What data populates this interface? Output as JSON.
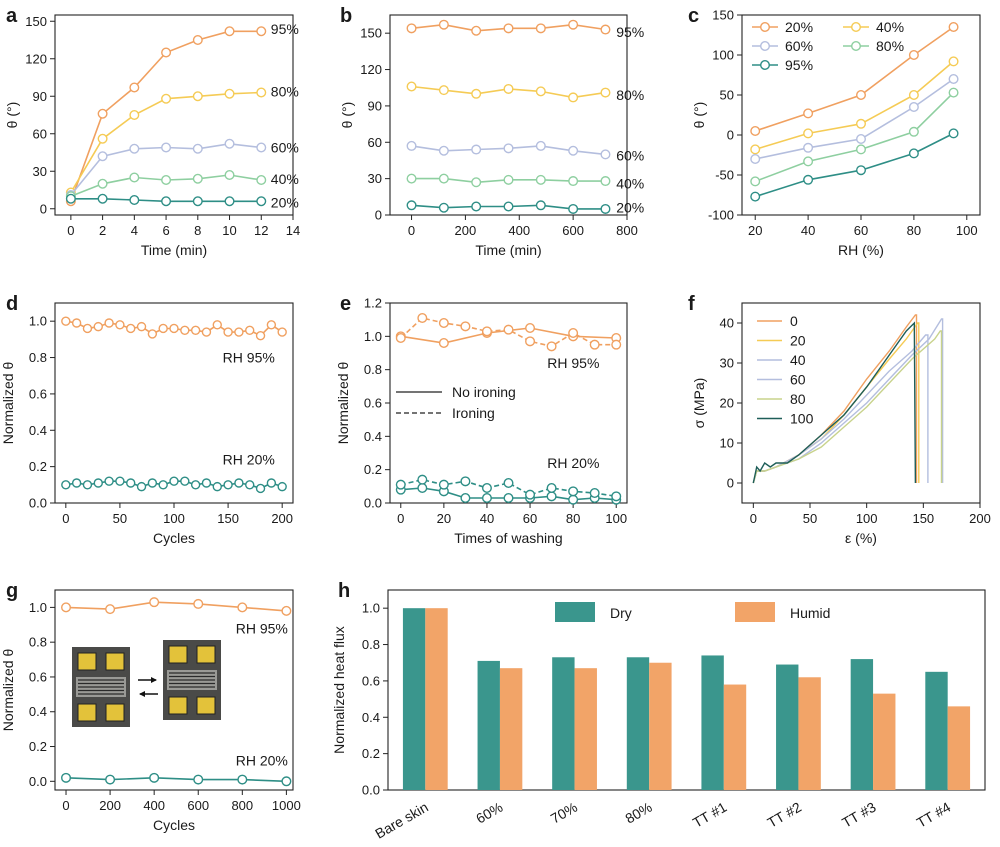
{
  "colors": {
    "orange": "#F0A060",
    "yellow": "#F5CB55",
    "lavender": "#B4BEDE",
    "mint": "#8ECFA0",
    "teal": "#2E8E86",
    "olive": "#C8D38C",
    "darkteal": "#1E5E58",
    "bar_dry": "#3A968D",
    "bar_humid": "#F2A468"
  },
  "chart_data": [
    {
      "id": "a",
      "panel_label": "a",
      "type": "line",
      "xlabel": "Time (min)",
      "ylabel": "θ (°)",
      "xlim": [
        -1,
        14
      ],
      "ylim": [
        -5,
        155
      ],
      "xticks": [
        0,
        2,
        4,
        6,
        8,
        10,
        12,
        14
      ],
      "yticks": [
        0,
        30,
        60,
        90,
        120,
        150
      ],
      "series": [
        {
          "name": "95%",
          "color": "orange",
          "x": [
            0,
            2,
            4,
            6,
            8,
            10,
            12
          ],
          "y": [
            6,
            76,
            97,
            125,
            135,
            142,
            142
          ]
        },
        {
          "name": "80%",
          "color": "yellow",
          "x": [
            0,
            2,
            4,
            6,
            8,
            10,
            12
          ],
          "y": [
            13,
            56,
            75,
            88,
            90,
            92,
            93
          ]
        },
        {
          "name": "60%",
          "color": "lavender",
          "x": [
            0,
            2,
            4,
            6,
            8,
            10,
            12
          ],
          "y": [
            11,
            42,
            48,
            49,
            48,
            52,
            49
          ]
        },
        {
          "name": "40%",
          "color": "mint",
          "x": [
            0,
            2,
            4,
            6,
            8,
            10,
            12
          ],
          "y": [
            10,
            20,
            25,
            23,
            24,
            27,
            23
          ]
        },
        {
          "name": "20%",
          "color": "teal",
          "x": [
            0,
            2,
            4,
            6,
            8,
            10,
            12
          ],
          "y": [
            8,
            8,
            7,
            6,
            6,
            6,
            6
          ]
        }
      ],
      "labels": [
        {
          "text": "95%",
          "x": 12.6,
          "y": 144
        },
        {
          "text": "80%",
          "x": 12.6,
          "y": 94
        },
        {
          "text": "60%",
          "x": 12.6,
          "y": 49
        },
        {
          "text": "40%",
          "x": 12.6,
          "y": 24
        },
        {
          "text": "20%",
          "x": 12.6,
          "y": 5
        }
      ]
    },
    {
      "id": "b",
      "panel_label": "b",
      "type": "line",
      "xlabel": "Time (min)",
      "ylabel": "θ (°)",
      "xlim": [
        -80,
        800
      ],
      "ylim": [
        0,
        165
      ],
      "xticks": [
        0,
        200,
        400,
        600,
        800
      ],
      "yticks": [
        0,
        30,
        60,
        90,
        120,
        150
      ],
      "series": [
        {
          "name": "95%",
          "color": "orange",
          "x": [
            0,
            120,
            240,
            360,
            480,
            600,
            720
          ],
          "y": [
            154,
            157,
            152,
            154,
            154,
            157,
            153
          ]
        },
        {
          "name": "80%",
          "color": "yellow",
          "x": [
            0,
            120,
            240,
            360,
            480,
            600,
            720
          ],
          "y": [
            106,
            103,
            100,
            104,
            102,
            97,
            101
          ]
        },
        {
          "name": "60%",
          "color": "lavender",
          "x": [
            0,
            120,
            240,
            360,
            480,
            600,
            720
          ],
          "y": [
            57,
            53,
            54,
            55,
            57,
            53,
            50
          ]
        },
        {
          "name": "40%",
          "color": "mint",
          "x": [
            0,
            120,
            240,
            360,
            480,
            600,
            720
          ],
          "y": [
            30,
            30,
            27,
            29,
            29,
            28,
            28
          ]
        },
        {
          "name": "20%",
          "color": "teal",
          "x": [
            0,
            120,
            240,
            360,
            480,
            600,
            720
          ],
          "y": [
            8,
            6,
            7,
            7,
            8,
            5,
            5
          ]
        }
      ],
      "labels": [
        {
          "text": "95%",
          "x": 760,
          "y": 151
        },
        {
          "text": "80%",
          "x": 760,
          "y": 99
        },
        {
          "text": "60%",
          "x": 760,
          "y": 49
        },
        {
          "text": "40%",
          "x": 760,
          "y": 26
        },
        {
          "text": "20%",
          "x": 760,
          "y": 6
        }
      ]
    },
    {
      "id": "c",
      "panel_label": "c",
      "type": "line",
      "xlabel": "RH (%)",
      "ylabel": "θ (°)",
      "xlim": [
        15,
        105
      ],
      "ylim": [
        -100,
        150
      ],
      "xticks": [
        20,
        40,
        60,
        80,
        100
      ],
      "yticks": [
        -100,
        -50,
        0,
        50,
        100,
        150
      ],
      "legend_position": "top-left",
      "series": [
        {
          "name": "20%",
          "color": "orange",
          "x": [
            20,
            40,
            60,
            80,
            95
          ],
          "y": [
            5,
            27,
            50,
            100,
            135
          ]
        },
        {
          "name": "40%",
          "color": "yellow",
          "x": [
            20,
            40,
            60,
            80,
            95
          ],
          "y": [
            -18,
            2,
            14,
            50,
            92
          ]
        },
        {
          "name": "60%",
          "color": "lavender",
          "x": [
            20,
            40,
            60,
            80,
            95
          ],
          "y": [
            -30,
            -16,
            -5,
            35,
            70
          ]
        },
        {
          "name": "80%",
          "color": "mint",
          "x": [
            20,
            40,
            60,
            80,
            95
          ],
          "y": [
            -58,
            -33,
            -18,
            4,
            53
          ]
        },
        {
          "name": "95%",
          "color": "teal",
          "x": [
            20,
            40,
            60,
            80,
            95
          ],
          "y": [
            -77,
            -56,
            -44,
            -23,
            2
          ]
        }
      ]
    },
    {
      "id": "d",
      "panel_label": "d",
      "type": "line",
      "xlabel": "Cycles",
      "ylabel": "Normalized θ",
      "xlim": [
        -10,
        210
      ],
      "ylim": [
        0,
        1.1
      ],
      "xticks": [
        0,
        50,
        100,
        150,
        200
      ],
      "yticks": [
        0.0,
        0.2,
        0.4,
        0.6,
        0.8,
        1.0
      ],
      "series": [
        {
          "name": "RH 95%",
          "color": "orange",
          "x": [
            0,
            10,
            20,
            30,
            40,
            50,
            60,
            70,
            80,
            90,
            100,
            110,
            120,
            130,
            140,
            150,
            160,
            170,
            180,
            190,
            200
          ],
          "y": [
            1.0,
            0.99,
            0.96,
            0.97,
            0.99,
            0.98,
            0.96,
            0.97,
            0.93,
            0.96,
            0.96,
            0.95,
            0.95,
            0.94,
            0.98,
            0.94,
            0.94,
            0.95,
            0.92,
            0.98,
            0.94
          ]
        },
        {
          "name": "RH 20%",
          "color": "teal",
          "x": [
            0,
            10,
            20,
            30,
            40,
            50,
            60,
            70,
            80,
            90,
            100,
            110,
            120,
            130,
            140,
            150,
            160,
            170,
            180,
            190,
            200
          ],
          "y": [
            0.1,
            0.11,
            0.1,
            0.11,
            0.12,
            0.12,
            0.11,
            0.09,
            0.11,
            0.1,
            0.12,
            0.12,
            0.1,
            0.11,
            0.09,
            0.1,
            0.11,
            0.1,
            0.08,
            0.11,
            0.09
          ]
        }
      ],
      "labels": [
        {
          "text": "RH 95%",
          "x": 145,
          "y": 0.8
        },
        {
          "text": "RH 20%",
          "x": 145,
          "y": 0.24
        }
      ]
    },
    {
      "id": "e",
      "panel_label": "e",
      "type": "line",
      "xlabel": "Times of washing",
      "ylabel": "Normalized θ",
      "xlim": [
        -5,
        105
      ],
      "ylim": [
        0,
        1.2
      ],
      "xticks": [
        0,
        20,
        40,
        60,
        80,
        100
      ],
      "yticks": [
        0.0,
        0.2,
        0.4,
        0.6,
        0.8,
        1.0,
        1.2
      ],
      "legend": [
        "No ironing",
        "Ironing"
      ],
      "series": [
        {
          "name": "No ironing",
          "style": "solid",
          "color": "orange",
          "x": [
            0,
            20,
            40,
            60,
            80,
            100
          ],
          "y": [
            1.0,
            0.96,
            1.02,
            1.05,
            1.0,
            0.99
          ]
        },
        {
          "name": "Ironing",
          "style": "dashed",
          "color": "orange",
          "x": [
            0,
            10,
            20,
            30,
            40,
            50,
            60,
            70,
            80,
            90,
            100
          ],
          "y": [
            0.99,
            1.11,
            1.08,
            1.06,
            1.03,
            1.04,
            0.97,
            0.94,
            1.02,
            0.95,
            0.95
          ]
        },
        {
          "name": "No ironing",
          "style": "solid",
          "color": "teal",
          "x": [
            0,
            10,
            20,
            30,
            40,
            50,
            60,
            70,
            80,
            90,
            100
          ],
          "y": [
            0.08,
            0.09,
            0.07,
            0.03,
            0.03,
            0.03,
            0.03,
            0.04,
            0.02,
            0.03,
            0.02
          ]
        },
        {
          "name": "Ironing",
          "style": "dashed",
          "color": "teal",
          "x": [
            0,
            10,
            20,
            30,
            40,
            50,
            60,
            70,
            80,
            90,
            100
          ],
          "y": [
            0.11,
            0.14,
            0.11,
            0.13,
            0.09,
            0.12,
            0.05,
            0.09,
            0.07,
            0.06,
            0.04
          ]
        }
      ],
      "labels": [
        {
          "text": "RH 95%",
          "x": 68,
          "y": 0.84
        },
        {
          "text": "RH 20%",
          "x": 68,
          "y": 0.24
        }
      ]
    },
    {
      "id": "f",
      "panel_label": "f",
      "type": "line",
      "xlabel": "ε (%)",
      "ylabel": "σ (MPa)",
      "xlim": [
        -10,
        200
      ],
      "ylim": [
        -5,
        45
      ],
      "xticks": [
        0,
        50,
        100,
        150,
        200
      ],
      "yticks": [
        0,
        10,
        20,
        30,
        40
      ],
      "legend_position": "top-right",
      "series": [
        {
          "name": "0",
          "color": "orange",
          "x": [
            0,
            3,
            10,
            20,
            40,
            60,
            80,
            100,
            120,
            135,
            143,
            144,
            144
          ],
          "y": [
            0,
            3,
            3,
            4,
            7,
            12,
            18,
            26,
            33,
            39,
            42,
            42,
            0
          ]
        },
        {
          "name": "20",
          "color": "yellow",
          "x": [
            0,
            3,
            10,
            20,
            40,
            60,
            80,
            100,
            120,
            135,
            145,
            146,
            146
          ],
          "y": [
            0,
            3,
            3,
            4,
            7,
            11,
            17,
            24,
            31,
            36,
            40,
            40,
            0
          ]
        },
        {
          "name": "40",
          "color": "lavender",
          "x": [
            0,
            3,
            10,
            20,
            40,
            60,
            80,
            100,
            120,
            140,
            152,
            154,
            154
          ],
          "y": [
            0,
            3,
            3,
            4,
            7,
            11,
            16,
            22,
            28,
            33,
            37,
            37,
            0
          ]
        },
        {
          "name": "60",
          "color": "lavender",
          "x": [
            0,
            3,
            10,
            20,
            40,
            60,
            80,
            100,
            120,
            140,
            155,
            166,
            167,
            167
          ],
          "y": [
            0,
            3,
            3,
            4,
            6,
            10,
            15,
            20,
            26,
            32,
            36,
            41,
            41,
            0
          ]
        },
        {
          "name": "80",
          "color": "olive",
          "x": [
            0,
            3,
            10,
            20,
            40,
            60,
            80,
            100,
            120,
            140,
            160,
            165,
            166,
            166
          ],
          "y": [
            0,
            3,
            3,
            4,
            6,
            9,
            14,
            19,
            25,
            31,
            36,
            38,
            38,
            0
          ]
        },
        {
          "name": "100",
          "color": "darkteal",
          "x": [
            0,
            3,
            6,
            10,
            15,
            20,
            30,
            40,
            60,
            80,
            100,
            120,
            135,
            142,
            143
          ],
          "y": [
            0,
            4,
            3,
            5,
            4,
            5,
            5,
            7,
            12,
            17,
            24,
            32,
            38,
            40,
            0
          ]
        }
      ]
    },
    {
      "id": "g",
      "panel_label": "g",
      "type": "line",
      "xlabel": "Cycles",
      "ylabel": "Normalized θ",
      "xlim": [
        -50,
        1030
      ],
      "ylim": [
        -0.05,
        1.1
      ],
      "xticks": [
        0,
        200,
        400,
        600,
        800,
        1000
      ],
      "yticks": [
        0.0,
        0.2,
        0.4,
        0.6,
        0.8,
        1.0
      ],
      "series": [
        {
          "name": "RH 95%",
          "color": "orange",
          "x": [
            0,
            200,
            400,
            600,
            800,
            1000
          ],
          "y": [
            1.0,
            0.99,
            1.03,
            1.02,
            1.0,
            0.98
          ]
        },
        {
          "name": "RH 20%",
          "color": "teal",
          "x": [
            0,
            200,
            400,
            600,
            800,
            1000
          ],
          "y": [
            0.02,
            0.01,
            0.02,
            0.01,
            0.01,
            0.0
          ]
        }
      ],
      "labels": [
        {
          "text": "RH 95%",
          "x": 770,
          "y": 0.88
        },
        {
          "text": "RH 20%",
          "x": 770,
          "y": 0.12
        }
      ]
    },
    {
      "id": "h",
      "panel_label": "h",
      "type": "bar",
      "xlabel": "",
      "ylabel": "Normalized heat flux",
      "ylim": [
        0,
        1.1
      ],
      "yticks": [
        0.0,
        0.2,
        0.4,
        0.6,
        0.8,
        1.0
      ],
      "categories": [
        "Bare skin",
        "60%",
        "70%",
        "80%",
        "TT #1",
        "TT #2",
        "TT #3",
        "TT #4"
      ],
      "legend_position": "top",
      "series": [
        {
          "name": "Dry",
          "color": "bar_dry",
          "values": [
            1.0,
            0.71,
            0.73,
            0.73,
            0.74,
            0.69,
            0.72,
            0.65
          ]
        },
        {
          "name": "Humid",
          "color": "bar_humid",
          "values": [
            1.0,
            0.67,
            0.67,
            0.7,
            0.58,
            0.62,
            0.53,
            0.46
          ]
        }
      ]
    }
  ]
}
